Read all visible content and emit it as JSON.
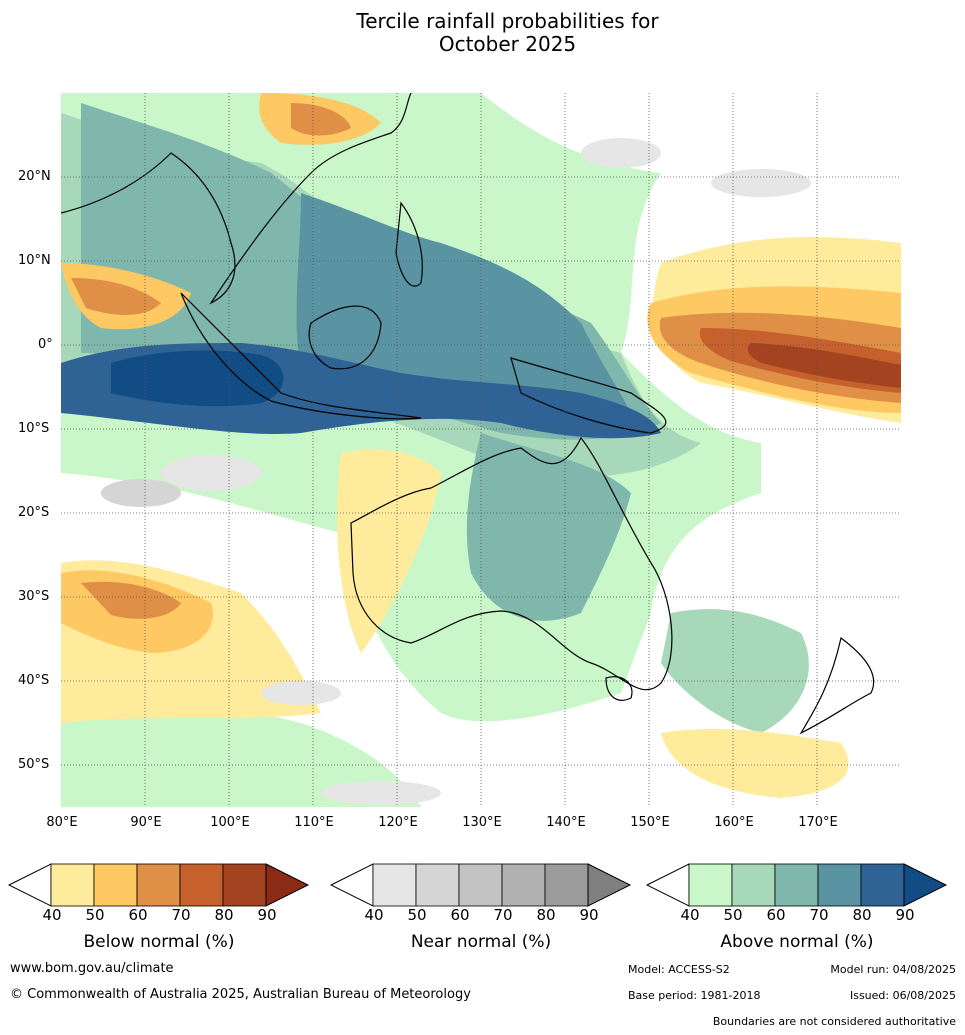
{
  "title_line1": "Tercile rainfall probabilities for",
  "title_line2": "October 2025",
  "map": {
    "lat_labels": [
      "20°N",
      "10°N",
      "0°",
      "10°S",
      "20°S",
      "30°S",
      "40°S",
      "50°S"
    ],
    "lon_labels": [
      "80°E",
      "90°E",
      "100°E",
      "110°E",
      "120°E",
      "130°E",
      "140°E",
      "150°E",
      "160°E",
      "170°E"
    ],
    "lon_range": [
      80,
      180
    ],
    "lat_range": [
      -55,
      30
    ]
  },
  "legends": [
    {
      "title": "Below normal (%)",
      "ticks": [
        "40",
        "50",
        "60",
        "70",
        "80",
        "90"
      ],
      "colors": [
        "#ffeb9c",
        "#fec862",
        "#df8f46",
        "#c6612e",
        "#a3431f",
        "#8b2a15"
      ]
    },
    {
      "title": "Near normal (%)",
      "ticks": [
        "40",
        "50",
        "60",
        "70",
        "80",
        "90"
      ],
      "colors": [
        "#e6e6e6",
        "#d5d5d5",
        "#c3c3c3",
        "#b1b1b1",
        "#9b9b9b",
        "#808080"
      ]
    },
    {
      "title": "Above normal (%)",
      "ticks": [
        "40",
        "50",
        "60",
        "70",
        "80",
        "90"
      ],
      "colors": [
        "#c9f7c9",
        "#a7d8b9",
        "#7fb7ac",
        "#5a94a2",
        "#2f6395",
        "#114d84"
      ]
    }
  ],
  "footer": {
    "website": "www.bom.gov.au/climate",
    "copyright": "© Commonwealth of Australia 2025, Australian Bureau of Meteorology",
    "model": "Model: ACCESS-S2",
    "model_run": "Model run: 04/08/2025",
    "base_period": "Base period: 1981-2018",
    "issued": "Issued: 06/08/2025",
    "disclaimer": "Boundaries are not considered authoritative"
  }
}
